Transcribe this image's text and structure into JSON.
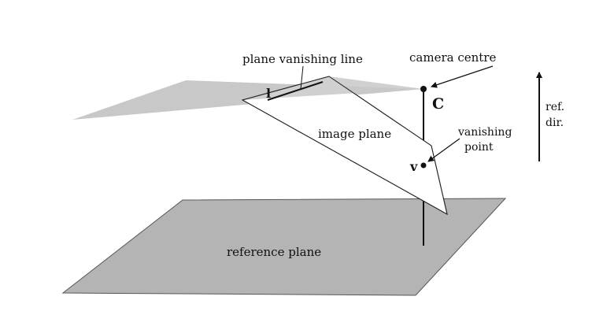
{
  "labels": {
    "plane_vanishing_line": "plane vanishing line",
    "camera_centre": "camera centre",
    "line_l": "l",
    "point_c": "C",
    "ref_dir_1": "ref.",
    "ref_dir_2": "dir.",
    "image_plane": "image plane",
    "vanishing_point_1": "vanishing",
    "vanishing_point_2": "point",
    "point_v": "v",
    "reference_plane": "reference plane"
  },
  "colors": {
    "horizon_fill": "#c8c8c8",
    "reference_plane_fill": "#b4b4b4",
    "ink": "#111111"
  }
}
